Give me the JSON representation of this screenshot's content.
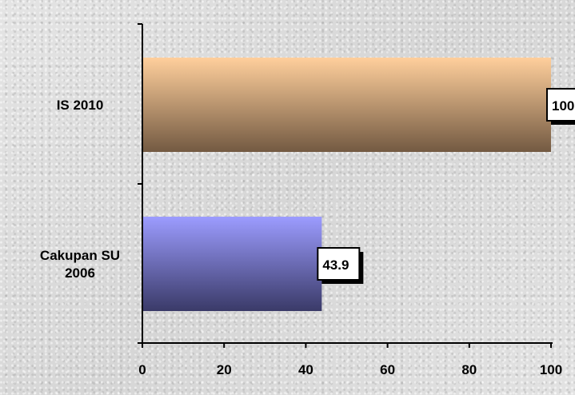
{
  "chart_data": {
    "type": "bar",
    "orientation": "horizontal",
    "categories": [
      "IS 2010",
      "Cakupan SU 2006"
    ],
    "category_lines": [
      [
        "IS 2010"
      ],
      [
        "Cakupan SU",
        "2006"
      ]
    ],
    "values": [
      100,
      43.9
    ],
    "value_labels": [
      "100",
      "43.9"
    ],
    "xlim": [
      0,
      100
    ],
    "x_ticks": [
      0,
      20,
      40,
      60,
      80,
      100
    ],
    "x_tick_labels": [
      "0",
      "20",
      "40",
      "60",
      "80",
      "100"
    ],
    "title": "",
    "xlabel": "",
    "ylabel": "",
    "grid": false,
    "legend": "none",
    "bar_colors": [
      {
        "top": "#ffcf9c",
        "bottom": "#735a42"
      },
      {
        "top": "#9c9cff",
        "bottom": "#3a3a68"
      }
    ]
  }
}
